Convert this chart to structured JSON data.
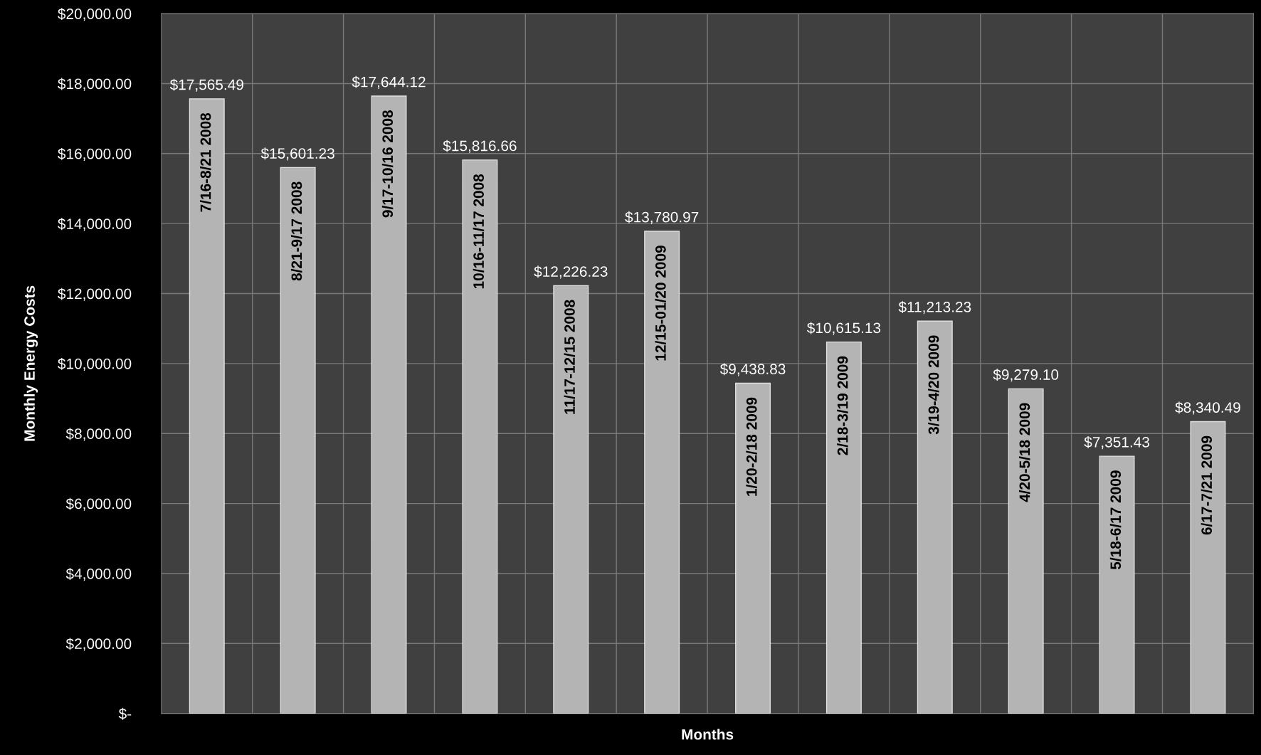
{
  "chart_data": {
    "type": "bar",
    "xlabel": "Months",
    "ylabel": "Monthly Energy Costs",
    "categories": [
      "7/16-8/21 2008",
      "8/21-9/17 2008",
      "9/17-10/16 2008",
      "10/16-11/17 2008",
      "11/17-12/15 2008",
      "12/15-01/20 2009",
      "1/20-2/18 2009",
      "2/18-3/19 2009",
      "3/19-4/20 2009",
      "4/20-5/18 2009",
      "5/18-6/17 2009",
      "6/17-7/21 2009"
    ],
    "values": [
      17565.49,
      15601.23,
      17644.12,
      15816.66,
      12226.23,
      13780.97,
      9438.83,
      10615.13,
      11213.23,
      9279.1,
      7351.43,
      8340.49
    ],
    "value_labels": [
      "$17,565.49",
      "$15,601.23",
      "$17,644.12",
      "$15,816.66",
      "$12,226.23",
      "$13,780.97",
      "$9,438.83",
      "$10,615.13",
      "$11,213.23",
      "$9,279.10",
      "$7,351.43",
      "$8,340.49"
    ],
    "color": "#b4b4b4",
    "ylim": [
      0,
      20000
    ],
    "yticks": [
      {
        "value": 0,
        "label": "$-"
      },
      {
        "value": 2000,
        "label": "$2,000.00"
      },
      {
        "value": 4000,
        "label": "$4,000.00"
      },
      {
        "value": 6000,
        "label": "$6,000.00"
      },
      {
        "value": 8000,
        "label": "$8,000.00"
      },
      {
        "value": 10000,
        "label": "$10,000.00"
      },
      {
        "value": 12000,
        "label": "$12,000.00"
      },
      {
        "value": 14000,
        "label": "$14,000.00"
      },
      {
        "value": 16000,
        "label": "$16,000.00"
      },
      {
        "value": 18000,
        "label": "$18,000.00"
      },
      {
        "value": 20000,
        "label": "$20,000.00"
      }
    ],
    "grid": true,
    "legend": false
  }
}
